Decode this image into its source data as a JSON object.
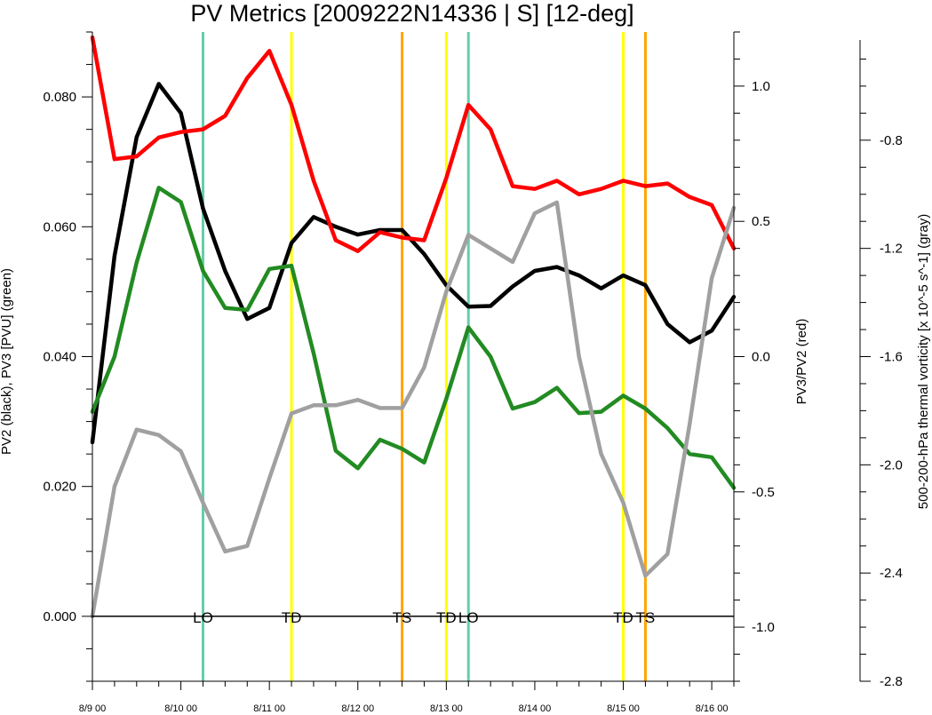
{
  "chart_data": {
    "type": "line",
    "title": "PV Metrics [2009222N14336 | S] [12-deg]",
    "y_left_label": "PV2 (black), PV3 [PVU] (green)",
    "y_right_label": "PV3/PV2 (red)",
    "y_far_right_label": "500-200-hPa thermal vorticity [x 10^-5 s^-1] (gray)",
    "x_range_days": [
      0,
      7.25
    ],
    "x_ticks": [
      {
        "day": 0,
        "label": "8/9 00"
      },
      {
        "day": 1,
        "label": "8/10 00"
      },
      {
        "day": 2,
        "label": "8/11 00"
      },
      {
        "day": 3,
        "label": "8/12 00"
      },
      {
        "day": 4,
        "label": "8/13 00"
      },
      {
        "day": 5,
        "label": "8/14 00"
      },
      {
        "day": 6,
        "label": "8/15 00"
      },
      {
        "day": 7,
        "label": "8/16 00"
      }
    ],
    "left_axis": {
      "range": [
        -0.01,
        0.09
      ],
      "ticks": [
        0.0,
        0.02,
        0.04,
        0.06,
        0.08
      ],
      "tick_labels": [
        "0.000",
        "0.020",
        "0.040",
        "0.060",
        "0.080"
      ],
      "zero_line": 0.0
    },
    "right_axis": {
      "range": [
        -1.2,
        1.2
      ],
      "ticks": [
        -1.0,
        -0.5,
        0.0,
        0.5,
        1.0
      ],
      "tick_labels": [
        "-1.0",
        "-0.5",
        "0.0",
        "0.5",
        "1.0"
      ]
    },
    "far_right_axis": {
      "range": [
        -2.8,
        -0.4
      ],
      "ticks": [
        -2.8,
        -2.4,
        -2.0,
        -1.6,
        -1.2,
        -0.8
      ],
      "tick_labels": [
        "-2.8",
        "-2.4",
        "-2.0",
        "-1.6",
        "-1.2",
        "-0.8"
      ]
    },
    "x_step_days": 0.25,
    "series": [
      {
        "axis": "left",
        "color": "#000000",
        "values": [
          0.0268,
          0.0555,
          0.0738,
          0.082,
          0.0775,
          0.0628,
          0.0532,
          0.0458,
          0.0475,
          0.0575,
          0.0615,
          0.06,
          0.0588,
          0.0595,
          0.0595,
          0.0558,
          0.051,
          0.0477,
          0.0478,
          0.0508,
          0.0532,
          0.0538,
          0.0525,
          0.0505,
          0.0525,
          0.051,
          0.045,
          0.0422,
          0.044,
          0.0492
        ]
      },
      {
        "axis": "left",
        "color": "#228b22",
        "values": [
          0.0315,
          0.04,
          0.0545,
          0.066,
          0.0638,
          0.0532,
          0.0475,
          0.0472,
          0.0535,
          0.054,
          0.0405,
          0.0255,
          0.0228,
          0.0272,
          0.0258,
          0.0237,
          0.0335,
          0.0445,
          0.04,
          0.032,
          0.033,
          0.0352,
          0.0313,
          0.0315,
          0.034,
          0.032,
          0.029,
          0.025,
          0.0245,
          0.0198
        ]
      },
      {
        "axis": "right",
        "color": "#ff0000",
        "values": [
          1.18,
          0.73,
          0.74,
          0.81,
          0.83,
          0.84,
          0.89,
          1.03,
          1.13,
          0.93,
          0.65,
          0.43,
          0.39,
          0.46,
          0.44,
          0.43,
          0.66,
          0.93,
          0.84,
          0.63,
          0.62,
          0.65,
          0.6,
          0.62,
          0.65,
          0.63,
          0.64,
          0.59,
          0.56,
          0.4
        ]
      },
      {
        "axis": "far_right",
        "color": "#a0a0a0",
        "values": [
          -2.56,
          -2.08,
          -1.87,
          -1.89,
          -1.95,
          -2.14,
          -2.32,
          -2.3,
          -2.05,
          -1.81,
          -1.78,
          -1.78,
          -1.76,
          -1.79,
          -1.79,
          -1.64,
          -1.36,
          -1.15,
          -1.2,
          -1.25,
          -1.07,
          -1.03,
          -1.6,
          -1.96,
          -2.14,
          -2.41,
          -2.33,
          -1.85,
          -1.31,
          -1.05
        ]
      }
    ],
    "event_lines": [
      {
        "day": 1.25,
        "label": "LO",
        "color": "#66cdaa"
      },
      {
        "day": 2.25,
        "label": "TD",
        "color": "#ffff00"
      },
      {
        "day": 3.5,
        "label": "TS",
        "color": "#ffa500"
      },
      {
        "day": 4.0,
        "label": "TD",
        "color": "#ffff00"
      },
      {
        "day": 4.25,
        "label": "LO",
        "color": "#66cdaa"
      },
      {
        "day": 6.0,
        "label": "TD",
        "color": "#ffff00"
      },
      {
        "day": 6.25,
        "label": "TS",
        "color": "#ffa500"
      }
    ]
  }
}
